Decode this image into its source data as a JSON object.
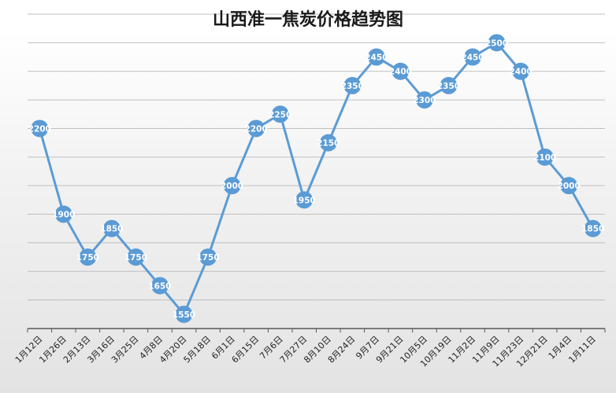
{
  "chart_data": {
    "type": "line",
    "title": "山西准一焦炭价格趋势图",
    "xlabel": "",
    "ylabel": "",
    "categories": [
      "1月12日",
      "1月26日",
      "2月13日",
      "3月16日",
      "3月25日",
      "4月8日",
      "4月20日",
      "5月18日",
      "6月1日",
      "6月15日",
      "7月6日",
      "7月27日",
      "8月10日",
      "8月24日",
      "9月7日",
      "9月21日",
      "10月5日",
      "10月19日",
      "11月2日",
      "11月9日",
      "11月23日",
      "12月21日",
      "1月4日",
      "1月11日"
    ],
    "series": [
      {
        "values": [
          2200,
          1900,
          1750,
          1850,
          1750,
          1650,
          1550,
          1750,
          2000,
          2200,
          2250,
          1950,
          2150,
          2350,
          2450,
          2400,
          2300,
          2350,
          2450,
          2500,
          2400,
          2100,
          2000,
          1850
        ]
      }
    ],
    "ylim": [
      1500,
      2600
    ],
    "grid": true,
    "legend": "none",
    "colors": {
      "line": "#5b9bd5",
      "marker": "#5b9bd5",
      "label": "#ffffff",
      "grid": "#bfbfbf",
      "axis": "#595959"
    }
  }
}
